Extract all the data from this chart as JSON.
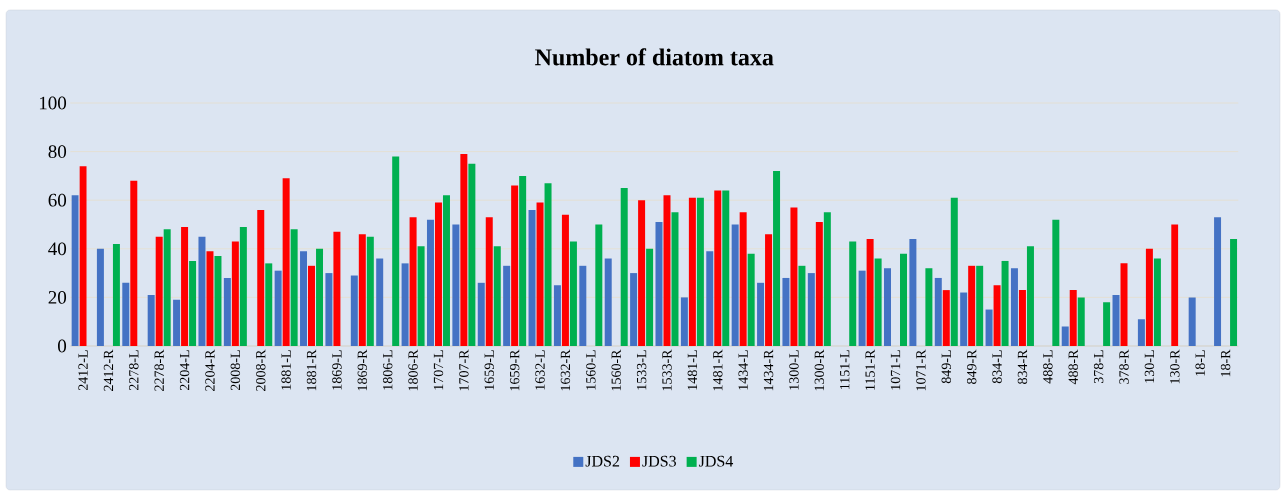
{
  "chart_data": {
    "type": "bar",
    "title": "Number of  diatom taxa",
    "categories": [
      "2412-L",
      "2412-R",
      "2278-L",
      "2278-R",
      "2204-L",
      "2204-R",
      "2008-L",
      "2008-R",
      "1881-L",
      "1881-R",
      "1869-L",
      "1869-R",
      "1806-L",
      "1806-R",
      "1707-L",
      "1707-R",
      "1659-L",
      "1659-R",
      "1632-L",
      "1632-R",
      "1560-L",
      "1560-R",
      "1533-L",
      "1533-R",
      "1481-L",
      "1481-R",
      "1434-L",
      "1434-R",
      "1300-L",
      "1300-R",
      "1151-L",
      "1151-R",
      "1071-L",
      "1071-R",
      "849-L",
      "849-R",
      "834-L",
      "834-R",
      "488-L",
      "488-R",
      "378-L",
      "378-R",
      "130-L",
      "130-R",
      "18-L",
      "18-R"
    ],
    "series": [
      {
        "name": "JDS2",
        "color": "#4472c4",
        "values": [
          62,
          40,
          26,
          21,
          19,
          45,
          28,
          null,
          31,
          39,
          30,
          29,
          36,
          34,
          52,
          50,
          26,
          33,
          56,
          25,
          33,
          36,
          30,
          51,
          20,
          39,
          50,
          26,
          28,
          30,
          null,
          31,
          32,
          44,
          28,
          22,
          15,
          32,
          null,
          8,
          null,
          21,
          11,
          null,
          20,
          53
        ]
      },
      {
        "name": "JDS3",
        "color": "#ff0000",
        "values": [
          74,
          null,
          68,
          45,
          49,
          39,
          43,
          56,
          69,
          33,
          47,
          46,
          null,
          53,
          59,
          79,
          53,
          66,
          59,
          54,
          null,
          null,
          60,
          62,
          61,
          64,
          55,
          46,
          57,
          51,
          null,
          44,
          null,
          null,
          23,
          33,
          25,
          23,
          null,
          23,
          null,
          34,
          40,
          50,
          null,
          null
        ]
      },
      {
        "name": "JDS4",
        "color": "#00b050",
        "values": [
          null,
          42,
          null,
          48,
          35,
          37,
          49,
          34,
          48,
          40,
          null,
          45,
          78,
          41,
          62,
          75,
          41,
          70,
          67,
          43,
          50,
          65,
          40,
          55,
          61,
          64,
          38,
          72,
          33,
          55,
          43,
          36,
          38,
          32,
          61,
          33,
          35,
          41,
          52,
          20,
          18,
          null,
          36,
          null,
          null,
          44
        ]
      }
    ],
    "ylim": [
      0,
      100
    ],
    "yticks": [
      0,
      20,
      40,
      60,
      80,
      100
    ],
    "grid": "y",
    "legend": "bottom"
  }
}
